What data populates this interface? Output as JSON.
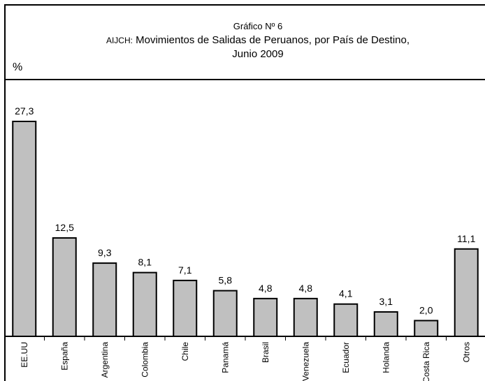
{
  "title": {
    "line1": "Gráfico Nº 6",
    "line2_prefix": "AIJCH:",
    "line2": "Movimientos de Salidas de Peruanos, por País de Destino,",
    "line3": "Junio 2009"
  },
  "ylabel": "%",
  "chart_data": {
    "type": "bar",
    "title": "Gráfico Nº 6 AIJCH: Movimientos de Salidas de Peruanos, por País de Destino, Junio 2009",
    "xlabel": "",
    "ylabel": "%",
    "categories": [
      "EE.UU",
      "España",
      "Argentina",
      "Colombia",
      "Chile",
      "Panamá",
      "Brasil",
      "Venezuela",
      "Ecuador",
      "Holanda",
      "Costa Rica",
      "Otros"
    ],
    "values": [
      27.3,
      12.5,
      9.3,
      8.1,
      7.1,
      5.8,
      4.8,
      4.8,
      4.1,
      3.1,
      2.0,
      11.1
    ],
    "value_labels": [
      "27,3",
      "12,5",
      "9,3",
      "8,1",
      "7,1",
      "5,8",
      "4,8",
      "4,8",
      "4,1",
      "3,1",
      "2,0",
      "11,1"
    ],
    "ylim": [
      0,
      27.3
    ],
    "grid": false,
    "legend": "none",
    "bar_color": "#c0c0c0",
    "edge_color": "#000000"
  }
}
